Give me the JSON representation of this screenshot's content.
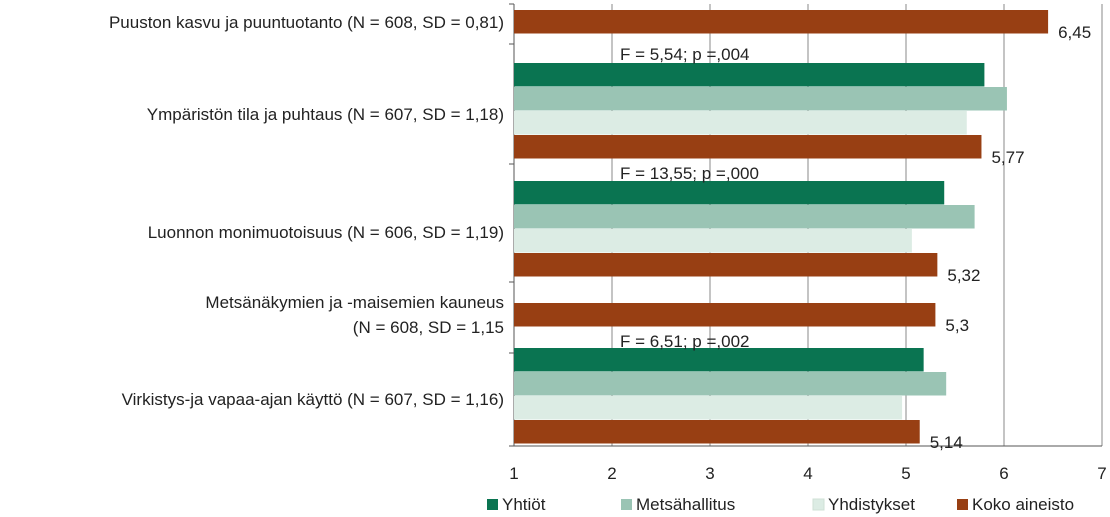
{
  "chart_data": {
    "type": "bar",
    "orientation": "horizontal",
    "categories": [
      [
        "Puuston kasvu ja puuntuotanto (N = 608, SD = 0,81)"
      ],
      [
        "Ympäristön tila ja puhtaus (N = 607, SD = 1,18)"
      ],
      [
        "Luonnon monimuotoisuus (N = 606, SD = 1,19)"
      ],
      [
        "Metsänäkymien ja -maisemien kauneus",
        "(N = 608, SD = 1,15"
      ],
      [
        "Virkistys-ja vapaa-ajan käyttö (N = 607, SD = 1,16)"
      ]
    ],
    "series": [
      {
        "name": "Yhtiöt",
        "color": "#0a7451",
        "values": [
          null,
          5.8,
          5.39,
          null,
          5.18
        ]
      },
      {
        "name": "Metsähallitus",
        "color": "#9ac4b4",
        "values": [
          null,
          6.03,
          5.7,
          null,
          5.41
        ]
      },
      {
        "name": "Yhdistykset",
        "color": "#dcece4",
        "values": [
          null,
          5.62,
          5.06,
          null,
          4.96
        ]
      },
      {
        "name": "Koko aineisto",
        "color": "#983f13",
        "values": [
          6.45,
          5.77,
          5.32,
          5.3,
          5.14
        ]
      }
    ],
    "value_labels": [
      "6,45",
      "5,77",
      "5,32",
      "5,3",
      "5,14"
    ],
    "annotations": [
      "",
      "F = 5,54; p =,004",
      "F = 13,55; p =,000",
      "",
      "F = 6,51; p =,002"
    ],
    "xlim": [
      1,
      7
    ],
    "xticks": [
      "1",
      "2",
      "3",
      "4",
      "5",
      "6",
      "7"
    ],
    "grid": true,
    "legend_position": "bottom",
    "title": "",
    "xlabel": "",
    "ylabel": ""
  }
}
